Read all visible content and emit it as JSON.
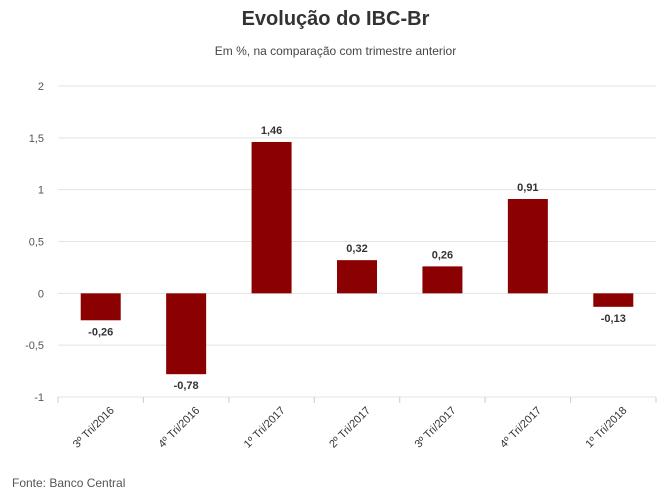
{
  "chart_data": {
    "type": "bar",
    "title": "Evolução do IBC-Br",
    "subtitle": "Em %, na comparação com trimestre anterior",
    "categories": [
      "3º Tri/2016",
      "4º Tri/2016",
      "1º Tri/2017",
      "2º Tri/2017",
      "3º Tri/2017",
      "4º Tri/2017",
      "1º Tri/2018"
    ],
    "values": [
      -0.26,
      -0.78,
      1.46,
      0.32,
      0.26,
      0.91,
      -0.13
    ],
    "data_labels": [
      "-0,26",
      "-0,78",
      "1,46",
      "0,32",
      "0,26",
      "0,91",
      "-0,13"
    ],
    "ylim": [
      -1,
      2
    ],
    "yticks": [
      2,
      1.5,
      1,
      0.5,
      0,
      -0.5,
      -1
    ],
    "ytick_labels": [
      "2",
      "1,5",
      "1",
      "0,5",
      "0",
      "-0,5",
      "-1"
    ],
    "grid": true,
    "bar_color": "#8b0000"
  },
  "source": "Fonte: Banco Central"
}
